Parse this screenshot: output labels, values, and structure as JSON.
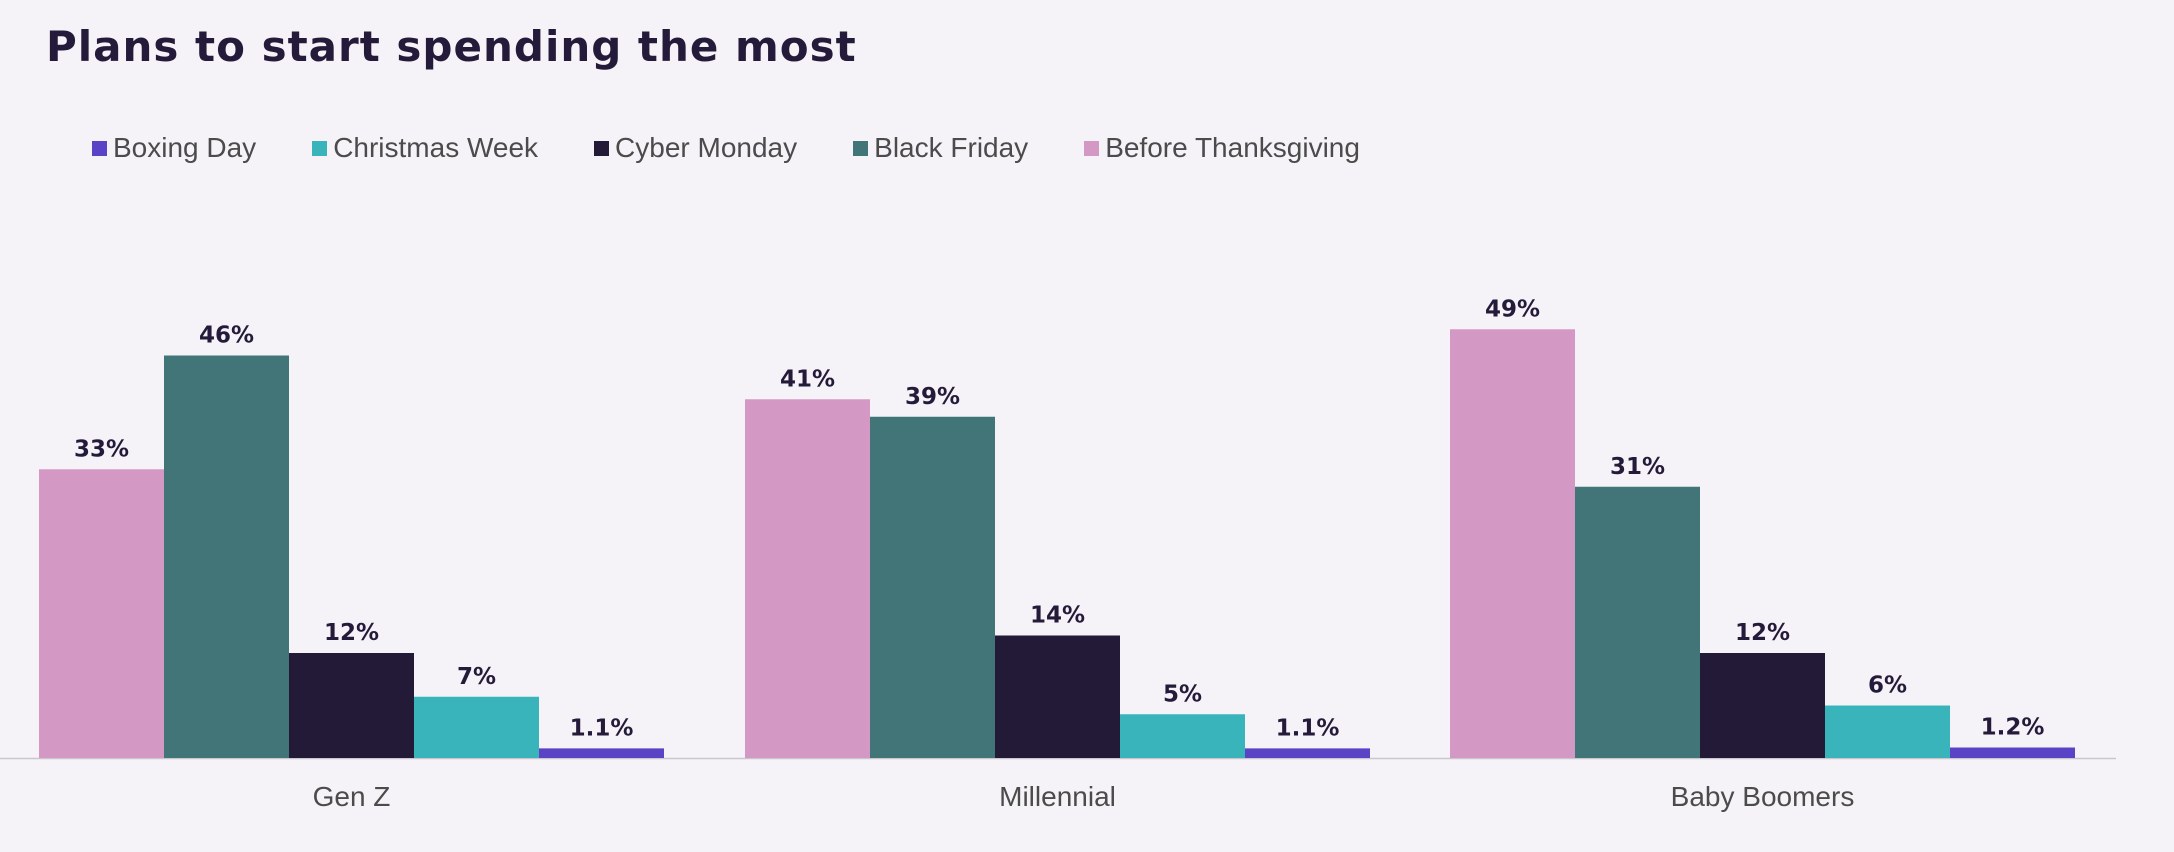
{
  "title": "Plans to start spending the most",
  "legend": [
    {
      "label": "Boxing Day",
      "color": "#5a43c4"
    },
    {
      "label": "Christmas Week",
      "color": "#3ab4bb"
    },
    {
      "label": "Cyber Monday",
      "color": "#231a38"
    },
    {
      "label": "Black Friday",
      "color": "#417577"
    },
    {
      "label": "Before Thanksgiving",
      "color": "#d399c4"
    }
  ],
  "chart_data": {
    "type": "bar",
    "title": "Plans to start spending the most",
    "xlabel": "",
    "ylabel": "",
    "categories": [
      "Gen Z",
      "Millennial",
      "Baby Boomers"
    ],
    "series": [
      {
        "name": "Before Thanksgiving",
        "color": "#d399c4",
        "values": [
          33,
          41,
          49
        ],
        "labels": [
          "33%",
          "41%",
          "49%"
        ]
      },
      {
        "name": "Black Friday",
        "color": "#417577",
        "values": [
          46,
          39,
          31
        ],
        "labels": [
          "46%",
          "39%",
          "31%"
        ]
      },
      {
        "name": "Cyber Monday",
        "color": "#231a38",
        "values": [
          12,
          14,
          12
        ],
        "labels": [
          "12%",
          "14%",
          "12%"
        ]
      },
      {
        "name": "Christmas Week",
        "color": "#3ab4bb",
        "values": [
          7,
          5,
          6
        ],
        "labels": [
          "7%",
          "5%",
          "6%"
        ]
      },
      {
        "name": "Boxing Day",
        "color": "#5a43c4",
        "values": [
          1.1,
          1.1,
          1.2
        ],
        "labels": [
          "1.1%",
          "1.1%",
          "1.2%"
        ]
      }
    ],
    "ylim": [
      0,
      55
    ],
    "grid": false,
    "legend_position": "top-left"
  }
}
